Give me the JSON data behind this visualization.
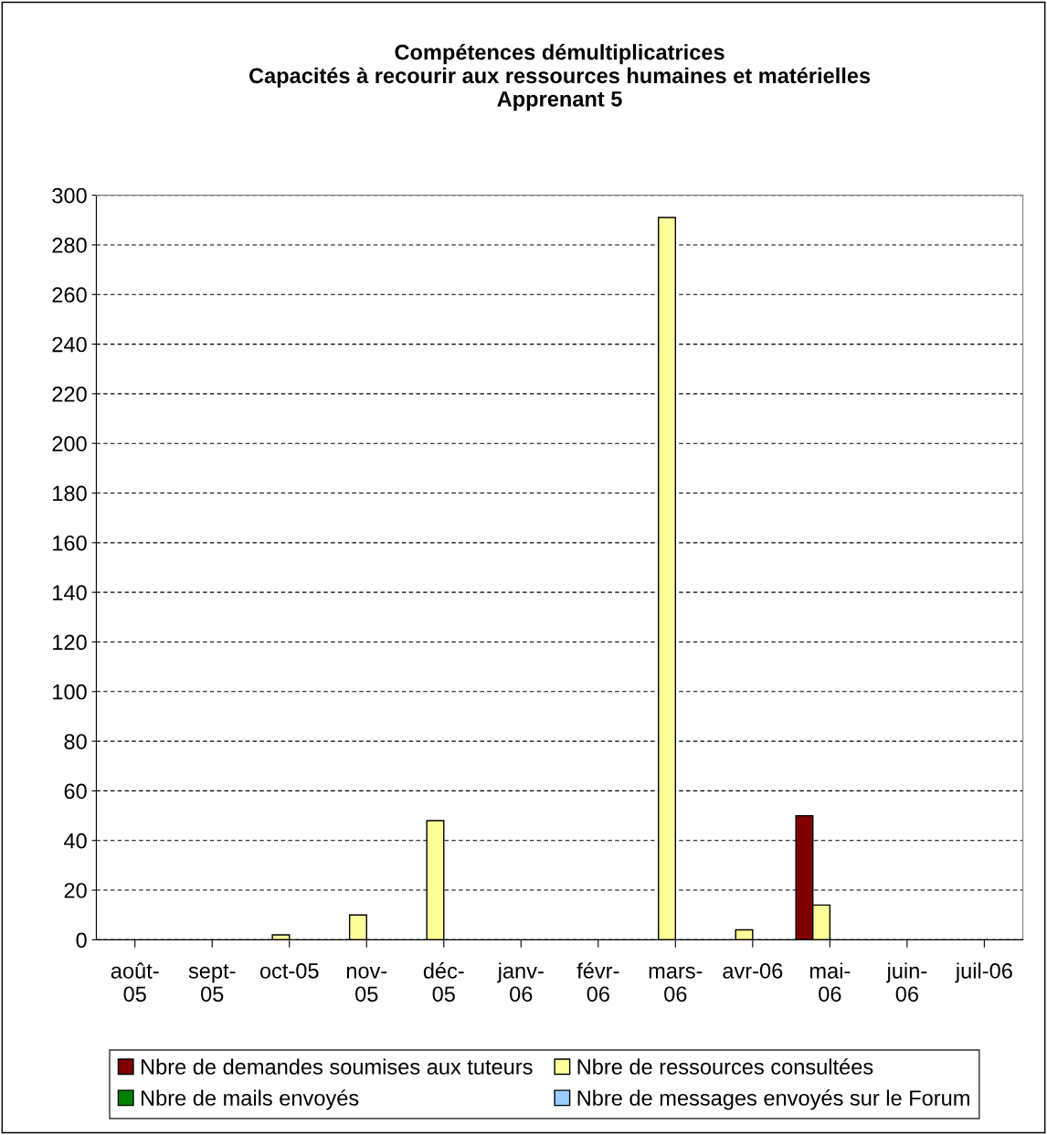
{
  "chart_data": {
    "type": "bar",
    "title": "Compétences démultiplicatrices\nCapacités à recourir aux ressources humaines et matérielles\nApprenant 5",
    "categories": [
      "août-\n05",
      "sept-\n05",
      "oct-05",
      "nov-\n05",
      "déc-\n05",
      "janv-\n06",
      "févr-\n06",
      "mars-\n06",
      "avr-06",
      "mai-\n06",
      "juin-\n06",
      "juil-06"
    ],
    "series": [
      {
        "name": "Nbre de demandes soumises aux tuteurs",
        "color": "#800000",
        "values": [
          0,
          0,
          0,
          0,
          0,
          0,
          0,
          0,
          0,
          50,
          0,
          0
        ]
      },
      {
        "name": "Nbre de ressources consultées",
        "color": "#ffff99",
        "values": [
          0,
          0,
          2,
          10,
          48,
          0,
          0,
          291,
          4,
          14,
          0,
          0
        ]
      },
      {
        "name": "Nbre de mails envoyés",
        "color": "#008000",
        "values": [
          0,
          0,
          0,
          0,
          0,
          0,
          0,
          0,
          0,
          0,
          0,
          0
        ]
      },
      {
        "name": "Nbre de messages envoyés sur le Forum",
        "color": "#99ccff",
        "values": [
          0,
          0,
          0,
          0,
          0,
          0,
          0,
          0,
          0,
          0,
          0,
          0
        ]
      }
    ],
    "ylim": [
      0,
      300
    ],
    "yticks": [
      0,
      20,
      40,
      60,
      80,
      100,
      120,
      140,
      160,
      180,
      200,
      220,
      240,
      260,
      280,
      300
    ],
    "grid": "y",
    "legend": "bottom"
  }
}
